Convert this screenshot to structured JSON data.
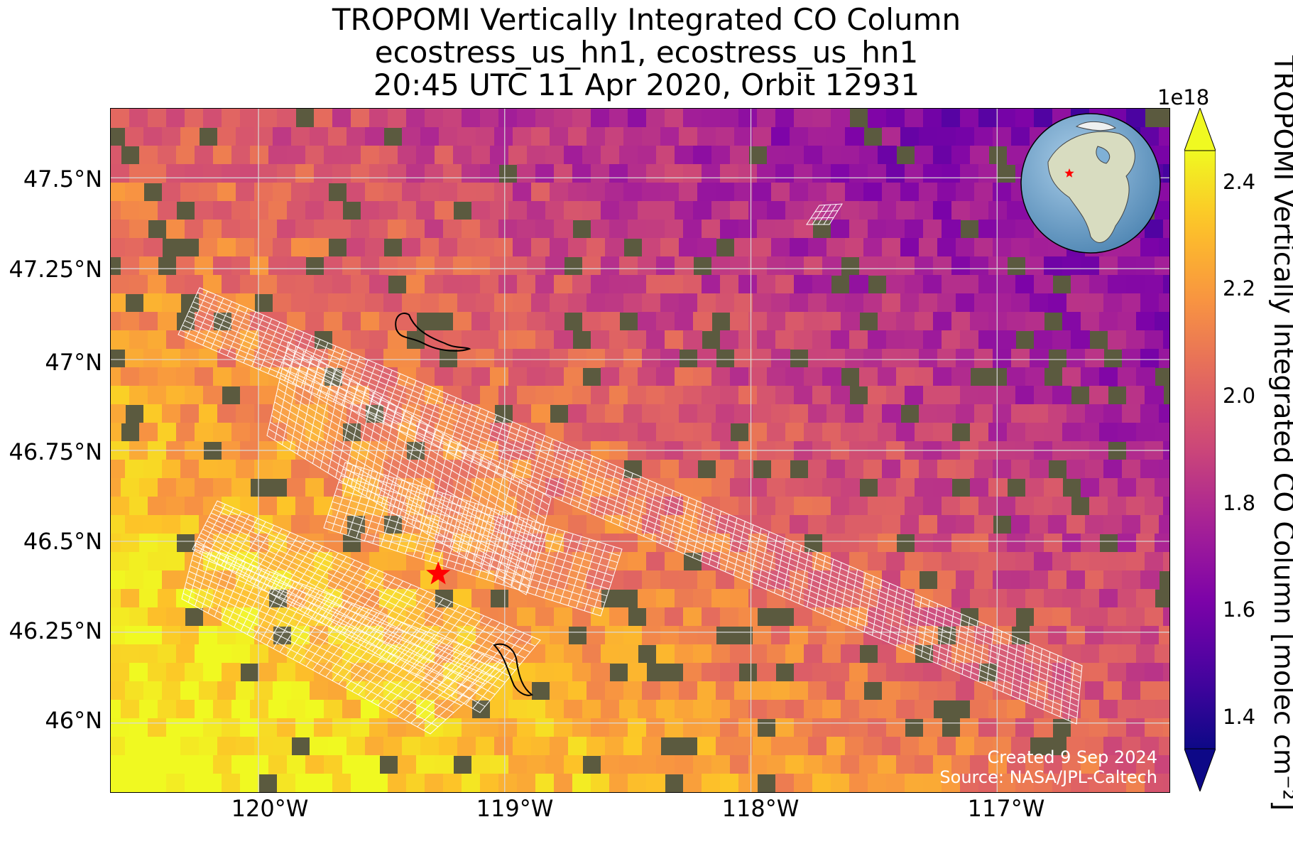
{
  "title": {
    "line1": "TROPOMI Vertically Integrated CO Column",
    "line2": "ecostress_us_hn1, ecostress_us_hn1",
    "line3": "20:45 UTC 11 Apr 2020, Orbit 12931"
  },
  "axes": {
    "lat_ticks": [
      "47.5°N",
      "47.25°N",
      "47°N",
      "46.75°N",
      "46.5°N",
      "46.25°N",
      "46°N"
    ],
    "lon_ticks": [
      "120°W",
      "119°W",
      "118°W",
      "117°W"
    ],
    "extent": {
      "lon_min": -120.6,
      "lon_max": -116.3,
      "lat_min": 45.81,
      "lat_max": 47.69
    }
  },
  "colorbar": {
    "label": "TROPOMI Vertically Integrated CO Column [molec cm⁻²]",
    "exponent": "1e18",
    "ticks": [
      "2.4",
      "2.2",
      "2.0",
      "1.8",
      "1.6",
      "1.4"
    ],
    "range": [
      1.3,
      2.48
    ],
    "colormap": "plasma",
    "extend": "both"
  },
  "credits": {
    "created": "Created 9 Sep 2024",
    "source": "Source: NASA/JPL-Caltech"
  },
  "markers": {
    "site_star_color": "#ff0000",
    "site_lon": -119.27,
    "site_lat": 46.41
  },
  "inset_globe": {
    "ocean_color": "#7fb0d6",
    "land_color": "#cfd9b8",
    "marker_color": "#ff0000"
  }
}
